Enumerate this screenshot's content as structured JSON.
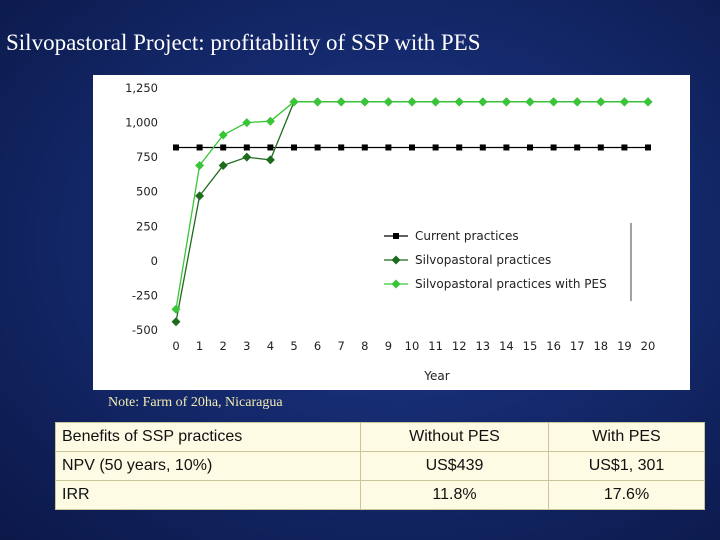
{
  "slide": {
    "title": "Silvopastoral Project: profitability of SSP with PES",
    "note": "Note: Farm of 20ha, Nicaragua"
  },
  "chart_data": {
    "type": "line",
    "x": [
      0,
      1,
      2,
      3,
      4,
      5,
      6,
      7,
      8,
      9,
      10,
      11,
      12,
      13,
      14,
      15,
      16,
      17,
      18,
      19,
      20
    ],
    "xlabel": "Year",
    "ylim": [
      -500,
      1250
    ],
    "yticks": [
      "1,250",
      "1,000",
      "750",
      "500",
      "250",
      "0",
      "-250",
      "-500"
    ],
    "grid": false,
    "legend_position": "right-center",
    "series": [
      {
        "name": "Current practices",
        "color": "#000000",
        "marker": "square",
        "values": [
          820,
          820,
          820,
          820,
          820,
          820,
          820,
          820,
          820,
          820,
          820,
          820,
          820,
          820,
          820,
          820,
          820,
          820,
          820,
          820,
          820
        ]
      },
      {
        "name": "Silvopastoral practices",
        "color": "#1e6b1e",
        "marker": "diamond",
        "values": [
          -440,
          470,
          690,
          750,
          730,
          1150,
          1150,
          1150,
          1150,
          1150,
          1150,
          1150,
          1150,
          1150,
          1150,
          1150,
          1150,
          1150,
          1150,
          1150,
          1150
        ]
      },
      {
        "name": "Silvopastoral practices with PES",
        "color": "#38c638",
        "marker": "diamond",
        "values": [
          -350,
          690,
          910,
          1000,
          1010,
          1150,
          1150,
          1150,
          1150,
          1150,
          1150,
          1150,
          1150,
          1150,
          1150,
          1150,
          1150,
          1150,
          1150,
          1150,
          1150
        ]
      }
    ]
  },
  "table": {
    "rows": [
      [
        "Benefits of SSP practices",
        "Without PES",
        "With PES"
      ],
      [
        "NPV (50 years, 10%)",
        "US$439",
        "US$1, 301"
      ],
      [
        "IRR",
        "11.8%",
        "17.6%"
      ]
    ]
  }
}
